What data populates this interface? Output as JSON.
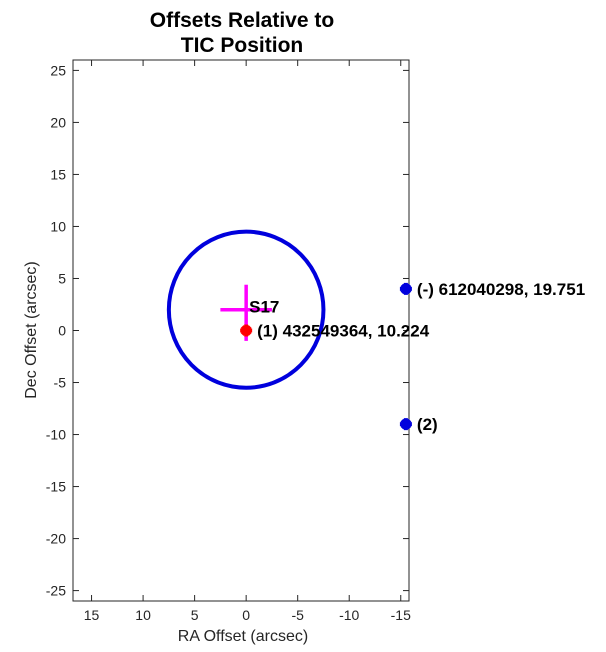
{
  "chart_data": {
    "type": "scatter",
    "title_lines": [
      "Offsets Relative to",
      "TIC Position"
    ],
    "xlabel": "RA Offset (arcsec)",
    "ylabel": "Dec Offset (arcsec)",
    "xlim": [
      16.8,
      -15.8
    ],
    "ylim": [
      -26,
      26
    ],
    "xticks": [
      15,
      10,
      5,
      0,
      -5,
      -10,
      -15
    ],
    "yticks": [
      25,
      20,
      15,
      10,
      5,
      0,
      -5,
      -10,
      -15,
      -20,
      -25
    ],
    "grid": false,
    "circle": {
      "x": 0.0,
      "y": 2.0,
      "radius": 7.5,
      "color": "#0000dd"
    },
    "centroid_cross": {
      "x": 0.0,
      "y": 2.0,
      "x_halfwidth": 2.5,
      "y_up": 2.4,
      "y_down": 3.0,
      "label": "S17",
      "color": "#ff00ff"
    },
    "points": [
      {
        "x": 0.0,
        "y": 0.0,
        "color": "#ff0000",
        "label": "(1) 432549364, 10.224"
      },
      {
        "x": -15.5,
        "y": 4.0,
        "color": "#0000dd",
        "label": "(-) 612040298, 19.751"
      },
      {
        "x": -15.5,
        "y": -9.0,
        "color": "#0000dd",
        "label": "(2)"
      }
    ]
  }
}
